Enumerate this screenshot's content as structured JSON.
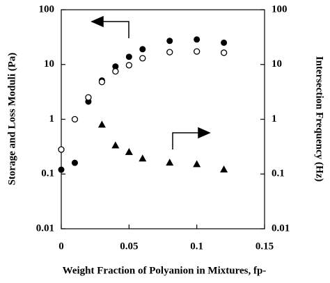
{
  "chart_data": {
    "type": "scatter",
    "xlabel": "Weight Fraction of Polyanion in Mixtures, fp-",
    "ylabel": "Storage and Loss Moduli (Pa)",
    "y2label": "Intersection Frequency (Hz)",
    "xlim": [
      0,
      0.15
    ],
    "xticks": [
      0,
      0.05,
      0.1,
      0.15
    ],
    "ylim": [
      0.01,
      100
    ],
    "yticks": [
      100,
      10,
      1,
      0.1,
      0.01
    ],
    "ylog": true,
    "y2lim": [
      0.01,
      100
    ],
    "y2ticks": [
      100,
      10,
      1,
      0.1,
      0.01
    ],
    "y2log": true,
    "series": [
      {
        "marker": "filled-circle",
        "color": "#000000",
        "x": [
          0,
          0.01,
          0.02,
          0.03,
          0.04,
          0.05,
          0.06,
          0.08,
          0.1,
          0.12
        ],
        "values": [
          0.12,
          0.16,
          2.1,
          5.1,
          9.2,
          13.8,
          19,
          27,
          28.6,
          25
        ]
      },
      {
        "marker": "open-circle",
        "color": "#000000",
        "x": [
          0,
          0.01,
          0.02,
          0.03,
          0.04,
          0.05,
          0.06,
          0.08,
          0.1,
          0.12
        ],
        "values": [
          0.28,
          1.0,
          2.5,
          4.8,
          7.5,
          9.7,
          13,
          16.8,
          17.3,
          16.4
        ]
      },
      {
        "marker": "triangle",
        "color": "#000000",
        "axis": "y2",
        "x": [
          0.03,
          0.04,
          0.05,
          0.06,
          0.08,
          0.1,
          0.12
        ],
        "values": [
          0.79,
          0.33,
          0.25,
          0.19,
          0.16,
          0.15,
          0.12
        ]
      }
    ]
  }
}
